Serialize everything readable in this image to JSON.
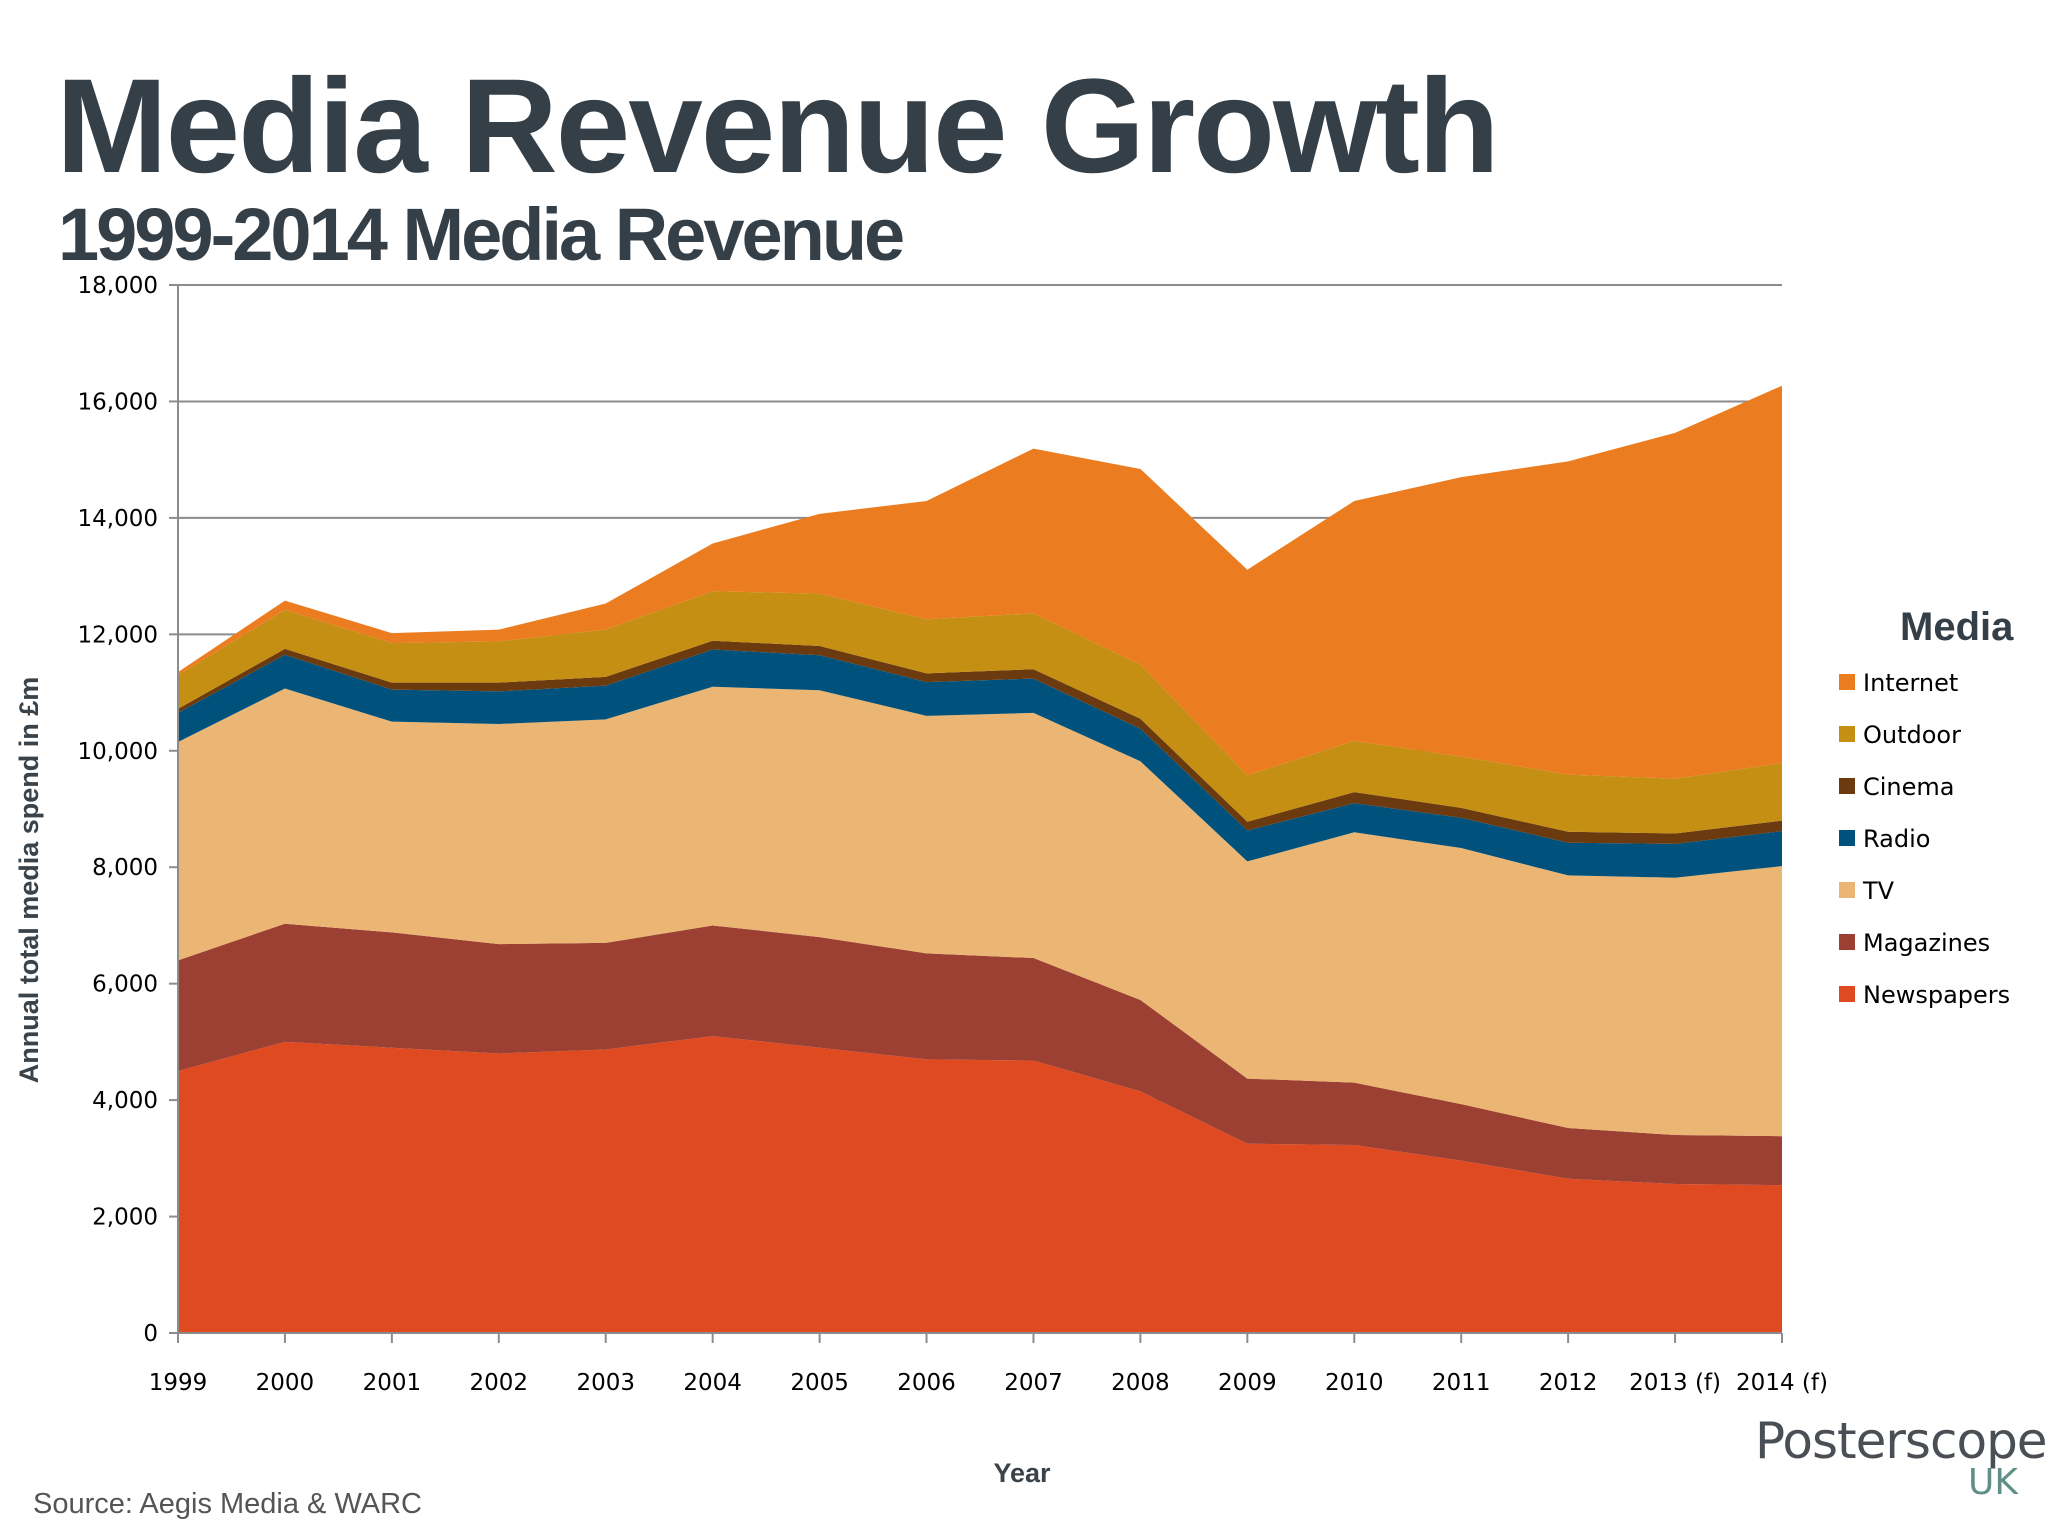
{
  "title": "Media Revenue Growth",
  "subtitle": "1999-2014 Media Revenue",
  "source": "Source: Aegis Media & WARC",
  "logo": {
    "name": "Posterscope",
    "sub": "UK"
  },
  "chart_data": {
    "type": "area",
    "stacked": true,
    "xlabel": "Year",
    "ylabel": "Annual total media spend in £m",
    "ylim": [
      0,
      18000
    ],
    "yticks": [
      0,
      2000,
      4000,
      6000,
      8000,
      10000,
      12000,
      14000,
      16000,
      18000
    ],
    "ytick_labels": [
      "0",
      "2,000",
      "4,000",
      "6,000",
      "8,000",
      "10,000",
      "12,000",
      "14,000",
      "16,000",
      "18,000"
    ],
    "categories": [
      "1999",
      "2000",
      "2001",
      "2002",
      "2003",
      "2004",
      "2005",
      "2006",
      "2007",
      "2008",
      "2009",
      "2010",
      "2011",
      "2012",
      "2013 (f)",
      "2014 (f)"
    ],
    "grid": "horizontal",
    "legend_title": "Media",
    "legend_placement": "right",
    "series": [
      {
        "name": "Newspapers",
        "color": "#e04a21",
        "values": [
          4500,
          5000,
          4900,
          4800,
          4870,
          5100,
          4900,
          4700,
          4680,
          4150,
          3250,
          3230,
          2960,
          2650,
          2560,
          2540
        ]
      },
      {
        "name": "Magazines",
        "color": "#9c4033",
        "values": [
          1900,
          2030,
          1980,
          1880,
          1830,
          1900,
          1900,
          1820,
          1760,
          1570,
          1120,
          1070,
          970,
          870,
          840,
          840
        ]
      },
      {
        "name": "TV",
        "color": "#ebb573",
        "values": [
          3750,
          4040,
          3620,
          3780,
          3840,
          4100,
          4240,
          4080,
          4210,
          4100,
          3730,
          4300,
          4400,
          4340,
          4420,
          4640
        ]
      },
      {
        "name": "Radio",
        "color": "#00527c",
        "values": [
          500,
          580,
          550,
          560,
          580,
          640,
          600,
          580,
          590,
          560,
          530,
          500,
          520,
          560,
          580,
          600
        ]
      },
      {
        "name": "Cinema",
        "color": "#6b3a0e",
        "values": [
          70,
          100,
          120,
          150,
          150,
          150,
          160,
          150,
          160,
          170,
          150,
          190,
          170,
          190,
          180,
          180
        ]
      },
      {
        "name": "Outdoor",
        "color": "#c48f12",
        "values": [
          580,
          670,
          680,
          710,
          810,
          850,
          900,
          930,
          960,
          930,
          800,
          880,
          880,
          980,
          940,
          990
        ]
      },
      {
        "name": "Internet",
        "color": "#eb7d20",
        "values": [
          50,
          160,
          170,
          200,
          450,
          820,
          1370,
          2030,
          2830,
          3360,
          3530,
          4120,
          4800,
          5380,
          5940,
          6480
        ]
      }
    ]
  }
}
